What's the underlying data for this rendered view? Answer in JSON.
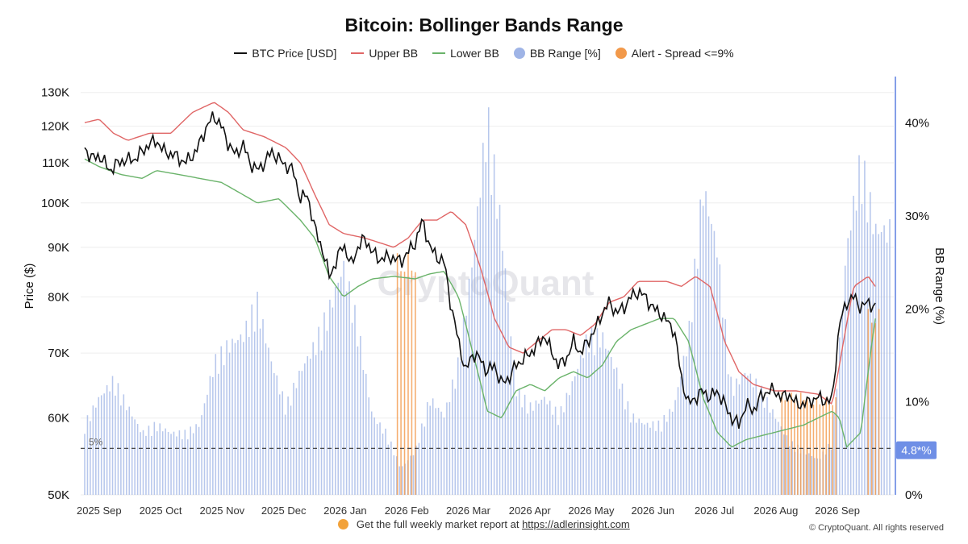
{
  "header": {
    "title": "Bitcoin: Bollinger Bands Range"
  },
  "legend": {
    "items": [
      {
        "label": "BTC Price [USD]",
        "kind": "line",
        "color": "#111111"
      },
      {
        "label": "Upper BB",
        "kind": "line",
        "color": "#e06666"
      },
      {
        "label": "Lower BB",
        "kind": "line",
        "color": "#6ab36a"
      },
      {
        "label": "BB Range [%]",
        "kind": "dot",
        "color": "#9fb4e6"
      },
      {
        "label": "Alert - Spread <=9%",
        "kind": "dot",
        "color": "#f2994a"
      }
    ]
  },
  "footer": {
    "text": "Get the full weekly market report at",
    "link": "https://adlerinsight.com",
    "copyright": "© CryptoQuant. All rights reserved",
    "watermark": "CryptoQuant"
  },
  "chart_data": {
    "type": "line",
    "title": "Bitcoin: Bollinger Bands Range",
    "ylabel": "Price ($)",
    "y2label": "BB Range (%)",
    "y_scale": "log",
    "ylim": [
      50000,
      135000
    ],
    "y2lim": [
      0,
      45
    ],
    "grid": true,
    "legend_position": "top-center",
    "x_ticks": [
      "2025 Sep",
      "2025 Oct",
      "2025 Nov",
      "2025 Dec",
      "2026 Jan",
      "2026 Feb",
      "2026 Mar",
      "2026 Apr",
      "2026 May",
      "2026 Jun",
      "2026 Jul",
      "2026 Aug",
      "2026 Sep"
    ],
    "y_ticks": [
      {
        "value": 50000,
        "label": "50K"
      },
      {
        "value": 60000,
        "label": "60K"
      },
      {
        "value": 70000,
        "label": "70K"
      },
      {
        "value": 80000,
        "label": "80K"
      },
      {
        "value": 90000,
        "label": "90K"
      },
      {
        "value": 100000,
        "label": "100K"
      },
      {
        "value": 110000,
        "label": "110K"
      },
      {
        "value": 120000,
        "label": "120K"
      },
      {
        "value": 130000,
        "label": "130K"
      }
    ],
    "y2_ticks": [
      {
        "value": 0,
        "label": "0%"
      },
      {
        "value": 10,
        "label": "10%"
      },
      {
        "value": 20,
        "label": "20%"
      },
      {
        "value": 30,
        "label": "30%"
      },
      {
        "value": 40,
        "label": "40%"
      }
    ],
    "reference_line": {
      "value": 5,
      "label": "5%"
    },
    "current_range_label": "4.8*%",
    "series": [
      {
        "name": "BTC Price [USD]",
        "axis": "left",
        "color": "#111111",
        "points": [
          [
            0,
            114000
          ],
          [
            0.1,
            111000
          ],
          [
            0.2,
            112000
          ],
          [
            0.35,
            108000
          ],
          [
            0.5,
            110500
          ],
          [
            0.7,
            111000
          ],
          [
            0.9,
            115000
          ],
          [
            1.0,
            116000
          ],
          [
            1.1,
            113000
          ],
          [
            1.25,
            112000
          ],
          [
            1.4,
            110000
          ],
          [
            1.55,
            113000
          ],
          [
            1.7,
            120000
          ],
          [
            1.8,
            123000
          ],
          [
            1.9,
            120000
          ],
          [
            2.0,
            115000
          ],
          [
            2.1,
            112000
          ],
          [
            2.2,
            115000
          ],
          [
            2.3,
            110000
          ],
          [
            2.4,
            108000
          ],
          [
            2.5,
            110000
          ],
          [
            2.6,
            113000
          ],
          [
            2.75,
            110000
          ],
          [
            2.9,
            108000
          ],
          [
            3.0,
            101000
          ],
          [
            3.1,
            102000
          ],
          [
            3.2,
            94000
          ],
          [
            3.3,
            90000
          ],
          [
            3.4,
            84000
          ],
          [
            3.5,
            87000
          ],
          [
            3.6,
            91000
          ],
          [
            3.7,
            86000
          ],
          [
            3.8,
            90000
          ],
          [
            3.9,
            92000
          ],
          [
            4.0,
            89000
          ],
          [
            4.1,
            87500
          ],
          [
            4.25,
            88000
          ],
          [
            4.4,
            87000
          ],
          [
            4.5,
            89000
          ],
          [
            4.6,
            91000
          ],
          [
            4.7,
            96000
          ],
          [
            4.8,
            90000
          ],
          [
            4.9,
            88000
          ],
          [
            5.0,
            87000
          ],
          [
            5.1,
            78000
          ],
          [
            5.2,
            72000
          ],
          [
            5.3,
            67000
          ],
          [
            5.4,
            70000
          ],
          [
            5.5,
            69000
          ],
          [
            5.6,
            67000
          ],
          [
            5.7,
            68000
          ],
          [
            5.8,
            65000
          ],
          [
            5.9,
            66000
          ],
          [
            6.0,
            68000
          ],
          [
            6.2,
            70000
          ],
          [
            6.4,
            73000
          ],
          [
            6.5,
            70000
          ],
          [
            6.6,
            68000
          ],
          [
            6.7,
            69000
          ],
          [
            6.8,
            72000
          ],
          [
            6.9,
            70000
          ],
          [
            7.0,
            72000
          ],
          [
            7.1,
            74000
          ],
          [
            7.2,
            77000
          ],
          [
            7.3,
            79000
          ],
          [
            7.4,
            77000
          ],
          [
            7.5,
            78000
          ],
          [
            7.6,
            80000
          ],
          [
            7.7,
            81000
          ],
          [
            7.8,
            80000
          ],
          [
            7.9,
            78000
          ],
          [
            8.0,
            77000
          ],
          [
            8.2,
            74000
          ],
          [
            8.3,
            66000
          ],
          [
            8.4,
            62000
          ],
          [
            8.5,
            63000
          ],
          [
            8.6,
            64000
          ],
          [
            8.7,
            63000
          ],
          [
            8.8,
            64000
          ],
          [
            8.9,
            62000
          ],
          [
            9.0,
            60000
          ],
          [
            9.1,
            59000
          ],
          [
            9.2,
            62000
          ],
          [
            9.3,
            61000
          ],
          [
            9.4,
            63000
          ],
          [
            9.5,
            64000
          ],
          [
            9.6,
            64000
          ],
          [
            9.7,
            63000
          ],
          [
            9.8,
            63500
          ],
          [
            9.9,
            62000
          ],
          [
            10.0,
            62000
          ],
          [
            10.1,
            62500
          ],
          [
            10.2,
            63000
          ],
          [
            10.3,
            62500
          ],
          [
            10.4,
            62500
          ],
          [
            10.5,
            75000
          ],
          [
            10.6,
            79000
          ],
          [
            10.7,
            80000
          ],
          [
            10.8,
            78000
          ],
          [
            10.9,
            79000
          ],
          [
            11.0,
            78000
          ]
        ]
      },
      {
        "name": "Upper BB",
        "axis": "left",
        "color": "#e06666",
        "points": [
          [
            0,
            121000
          ],
          [
            0.2,
            122000
          ],
          [
            0.4,
            118000
          ],
          [
            0.6,
            116000
          ],
          [
            0.9,
            118000
          ],
          [
            1.2,
            118000
          ],
          [
            1.5,
            124000
          ],
          [
            1.8,
            127000
          ],
          [
            2.0,
            124000
          ],
          [
            2.2,
            119000
          ],
          [
            2.5,
            117000
          ],
          [
            2.8,
            114000
          ],
          [
            3.0,
            110000
          ],
          [
            3.2,
            102000
          ],
          [
            3.4,
            95000
          ],
          [
            3.6,
            93000
          ],
          [
            3.9,
            92000
          ],
          [
            4.1,
            91000
          ],
          [
            4.3,
            90000
          ],
          [
            4.5,
            92000
          ],
          [
            4.7,
            96000
          ],
          [
            4.9,
            96000
          ],
          [
            5.1,
            98000
          ],
          [
            5.3,
            95000
          ],
          [
            5.5,
            86000
          ],
          [
            5.7,
            76000
          ],
          [
            5.9,
            71000
          ],
          [
            6.1,
            70000
          ],
          [
            6.3,
            72000
          ],
          [
            6.5,
            74000
          ],
          [
            6.7,
            74000
          ],
          [
            6.9,
            73000
          ],
          [
            7.1,
            75000
          ],
          [
            7.3,
            79000
          ],
          [
            7.5,
            80000
          ],
          [
            7.7,
            83000
          ],
          [
            7.9,
            83000
          ],
          [
            8.1,
            83000
          ],
          [
            8.3,
            82000
          ],
          [
            8.5,
            84000
          ],
          [
            8.7,
            82000
          ],
          [
            8.9,
            72000
          ],
          [
            9.1,
            67000
          ],
          [
            9.3,
            65000
          ],
          [
            9.6,
            64000
          ],
          [
            9.9,
            64000
          ],
          [
            10.2,
            63500
          ],
          [
            10.4,
            62000
          ],
          [
            10.5,
            68000
          ],
          [
            10.7,
            82000
          ],
          [
            10.9,
            84000
          ],
          [
            11.0,
            82000
          ]
        ]
      },
      {
        "name": "Lower BB",
        "axis": "left",
        "color": "#6ab36a",
        "points": [
          [
            0,
            111000
          ],
          [
            0.2,
            109000
          ],
          [
            0.5,
            107000
          ],
          [
            0.8,
            106000
          ],
          [
            1.0,
            108000
          ],
          [
            1.3,
            107000
          ],
          [
            1.6,
            106000
          ],
          [
            1.9,
            105000
          ],
          [
            2.1,
            103000
          ],
          [
            2.4,
            100000
          ],
          [
            2.7,
            101000
          ],
          [
            3.0,
            96000
          ],
          [
            3.2,
            92000
          ],
          [
            3.4,
            84000
          ],
          [
            3.6,
            80000
          ],
          [
            3.8,
            82000
          ],
          [
            4.0,
            83500
          ],
          [
            4.3,
            84000
          ],
          [
            4.6,
            83500
          ],
          [
            4.8,
            84500
          ],
          [
            5.0,
            85000
          ],
          [
            5.2,
            80000
          ],
          [
            5.4,
            70000
          ],
          [
            5.6,
            61000
          ],
          [
            5.8,
            60000
          ],
          [
            6.0,
            64000
          ],
          [
            6.2,
            65000
          ],
          [
            6.4,
            64000
          ],
          [
            6.6,
            66000
          ],
          [
            6.8,
            67000
          ],
          [
            7.0,
            66000
          ],
          [
            7.2,
            68000
          ],
          [
            7.4,
            72000
          ],
          [
            7.6,
            74000
          ],
          [
            7.8,
            75000
          ],
          [
            8.0,
            76000
          ],
          [
            8.2,
            76000
          ],
          [
            8.4,
            72000
          ],
          [
            8.6,
            63000
          ],
          [
            8.8,
            58000
          ],
          [
            9.0,
            56000
          ],
          [
            9.2,
            57000
          ],
          [
            9.4,
            57500
          ],
          [
            9.6,
            58000
          ],
          [
            9.8,
            58500
          ],
          [
            10.0,
            59000
          ],
          [
            10.2,
            60000
          ],
          [
            10.4,
            61000
          ],
          [
            10.5,
            60000
          ],
          [
            10.6,
            56000
          ],
          [
            10.8,
            58000
          ],
          [
            11.0,
            76000
          ]
        ]
      }
    ],
    "bb_range": {
      "name": "BB Range [%]",
      "axis": "right",
      "color": "#9fb4e6",
      "points": [
        [
          0,
          8
        ],
        [
          0.2,
          11
        ],
        [
          0.4,
          13
        ],
        [
          0.6,
          10
        ],
        [
          0.8,
          7
        ],
        [
          1.0,
          8
        ],
        [
          1.2,
          7
        ],
        [
          1.4,
          7
        ],
        [
          1.6,
          8
        ],
        [
          1.8,
          15
        ],
        [
          2.0,
          17
        ],
        [
          2.2,
          18
        ],
        [
          2.4,
          22
        ],
        [
          2.6,
          15
        ],
        [
          2.8,
          10
        ],
        [
          3.0,
          14
        ],
        [
          3.2,
          17
        ],
        [
          3.4,
          21
        ],
        [
          3.6,
          26
        ],
        [
          3.8,
          19
        ],
        [
          4.0,
          9
        ],
        [
          4.2,
          7
        ],
        [
          4.4,
          3
        ],
        [
          4.6,
          5
        ],
        [
          4.8,
          11
        ],
        [
          5.0,
          9
        ],
        [
          5.2,
          15
        ],
        [
          5.4,
          27
        ],
        [
          5.6,
          43
        ],
        [
          5.8,
          30
        ],
        [
          6.0,
          12
        ],
        [
          6.2,
          10
        ],
        [
          6.4,
          11
        ],
        [
          6.6,
          9
        ],
        [
          6.8,
          13
        ],
        [
          7.0,
          18
        ],
        [
          7.2,
          18
        ],
        [
          7.4,
          14
        ],
        [
          7.6,
          9
        ],
        [
          7.8,
          8
        ],
        [
          8.0,
          8
        ],
        [
          8.2,
          10
        ],
        [
          8.4,
          18
        ],
        [
          8.6,
          35
        ],
        [
          8.8,
          28
        ],
        [
          9.0,
          12
        ],
        [
          9.2,
          14
        ],
        [
          9.4,
          12
        ],
        [
          9.6,
          9
        ],
        [
          9.8,
          6
        ],
        [
          10.0,
          5
        ],
        [
          10.2,
          4
        ],
        [
          10.4,
          6
        ],
        [
          10.6,
          28
        ],
        [
          10.8,
          38
        ],
        [
          11.0,
          30
        ]
      ]
    },
    "alerts": {
      "name": "Alert - Spread <=9%",
      "axis": "right",
      "color": "#f2994a",
      "intervals": [
        [
          4.35,
          4.6,
          26
        ],
        [
          9.7,
          10.05,
          11
        ],
        [
          10.05,
          10.45,
          10.5
        ],
        [
          10.9,
          11.05,
          20
        ]
      ]
    },
    "x_domain": [
      0,
      11.2
    ]
  }
}
